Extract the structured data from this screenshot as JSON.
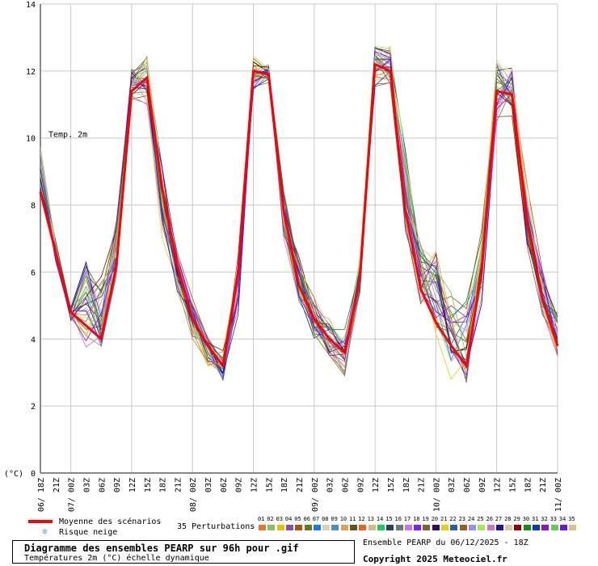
{
  "chart_data": {
    "type": "line",
    "title": "Diagramme des ensembles PEARP sur 96h pour .gif",
    "subtitle": "Températures 2m (°C) échelle dynamique",
    "ylabel": "(°C)",
    "series_label": "Temp. 2m",
    "ylim": [
      0,
      14
    ],
    "yticks": [
      0,
      2,
      4,
      6,
      8,
      10,
      12,
      14
    ],
    "grid": true,
    "x": [
      "06/ 18Z",
      "21Z",
      "07/ 00Z",
      "03Z",
      "06Z",
      "09Z",
      "12Z",
      "15Z",
      "18Z",
      "21Z",
      "08/ 00Z",
      "03Z",
      "06Z",
      "09Z",
      "12Z",
      "15Z",
      "18Z",
      "21Z",
      "09/ 00Z",
      "03Z",
      "06Z",
      "09Z",
      "12Z",
      "15Z",
      "18Z",
      "21Z",
      "10/ 00Z",
      "03Z",
      "06Z",
      "09Z",
      "12Z",
      "15Z",
      "18Z",
      "21Z",
      "11/ 00Z"
    ],
    "mean": {
      "name": "Moyenne des scénarios",
      "color": "#ff0000",
      "values": [
        8.4,
        6.6,
        4.8,
        4.4,
        4.0,
        6.2,
        11.4,
        11.8,
        8.5,
        6.2,
        4.6,
        3.8,
        3.2,
        6.0,
        12.0,
        11.9,
        7.8,
        5.6,
        4.6,
        4.0,
        3.6,
        5.8,
        12.2,
        12.0,
        7.8,
        5.5,
        4.5,
        3.8,
        3.2,
        6.0,
        11.4,
        11.3,
        7.5,
        5.2,
        3.8
      ]
    },
    "ensemble_min": [
      8.2,
      6.3,
      4.5,
      3.7,
      3.5,
      5.6,
      11.1,
      11.0,
      7.0,
      5.3,
      4.0,
      3.1,
      2.7,
      4.7,
      11.3,
      11.6,
      7.0,
      5.0,
      4.0,
      3.4,
      2.8,
      5.3,
      11.5,
      11.6,
      7.0,
      5.0,
      3.7,
      2.8,
      2.1,
      4.8,
      10.5,
      10.6,
      6.4,
      4.5,
      3.2
    ],
    "ensemble_max": [
      10.0,
      7.0,
      5.0,
      6.9,
      6.2,
      8.0,
      12.2,
      12.6,
      9.5,
      7.0,
      5.3,
      4.3,
      3.8,
      6.8,
      12.7,
      12.3,
      8.5,
      6.6,
      5.4,
      4.8,
      4.5,
      6.5,
      13.0,
      12.8,
      10.0,
      7.2,
      7.0,
      6.0,
      5.6,
      7.5,
      12.7,
      12.5,
      8.8,
      6.5,
      4.9
    ],
    "perturbations": {
      "label": "35 Perturbations",
      "ids": [
        "01",
        "02",
        "03",
        "04",
        "05",
        "06",
        "07",
        "08",
        "09",
        "10",
        "11",
        "12",
        "13",
        "14",
        "15",
        "16",
        "17",
        "18",
        "19",
        "20",
        "21",
        "22",
        "23",
        "24",
        "25",
        "26",
        "27",
        "28",
        "29",
        "30",
        "31",
        "32",
        "33",
        "34",
        "35"
      ],
      "colors": [
        "#e07828",
        "#88c060",
        "#e8c000",
        "#8850a8",
        "#b05010",
        "#608010",
        "#1080f0",
        "#e0d0b0",
        "#4890c0",
        "#e0a050",
        "#685020",
        "#f06018",
        "#d0c080",
        "#10d060",
        "#284058",
        "#687880",
        "#d070f0",
        "#8020f0",
        "#806030",
        "#300870",
        "#e8d000",
        "#2860a0",
        "#906020",
        "#9890e8",
        "#a0f040",
        "#d070d0",
        "#2010a0",
        "#d8c8a8",
        "#900000",
        "#109010",
        "#0838c0",
        "#9010d0",
        "#60d040",
        "#7010f0",
        "#e0c080"
      ]
    },
    "snow": {
      "label": "Risque neige",
      "color": "#60a8e8"
    }
  },
  "footer": {
    "run": "Ensemble PEARP du 06/12/2025 - 18Z",
    "copyright": "Copyright 2025 Meteociel.fr"
  }
}
